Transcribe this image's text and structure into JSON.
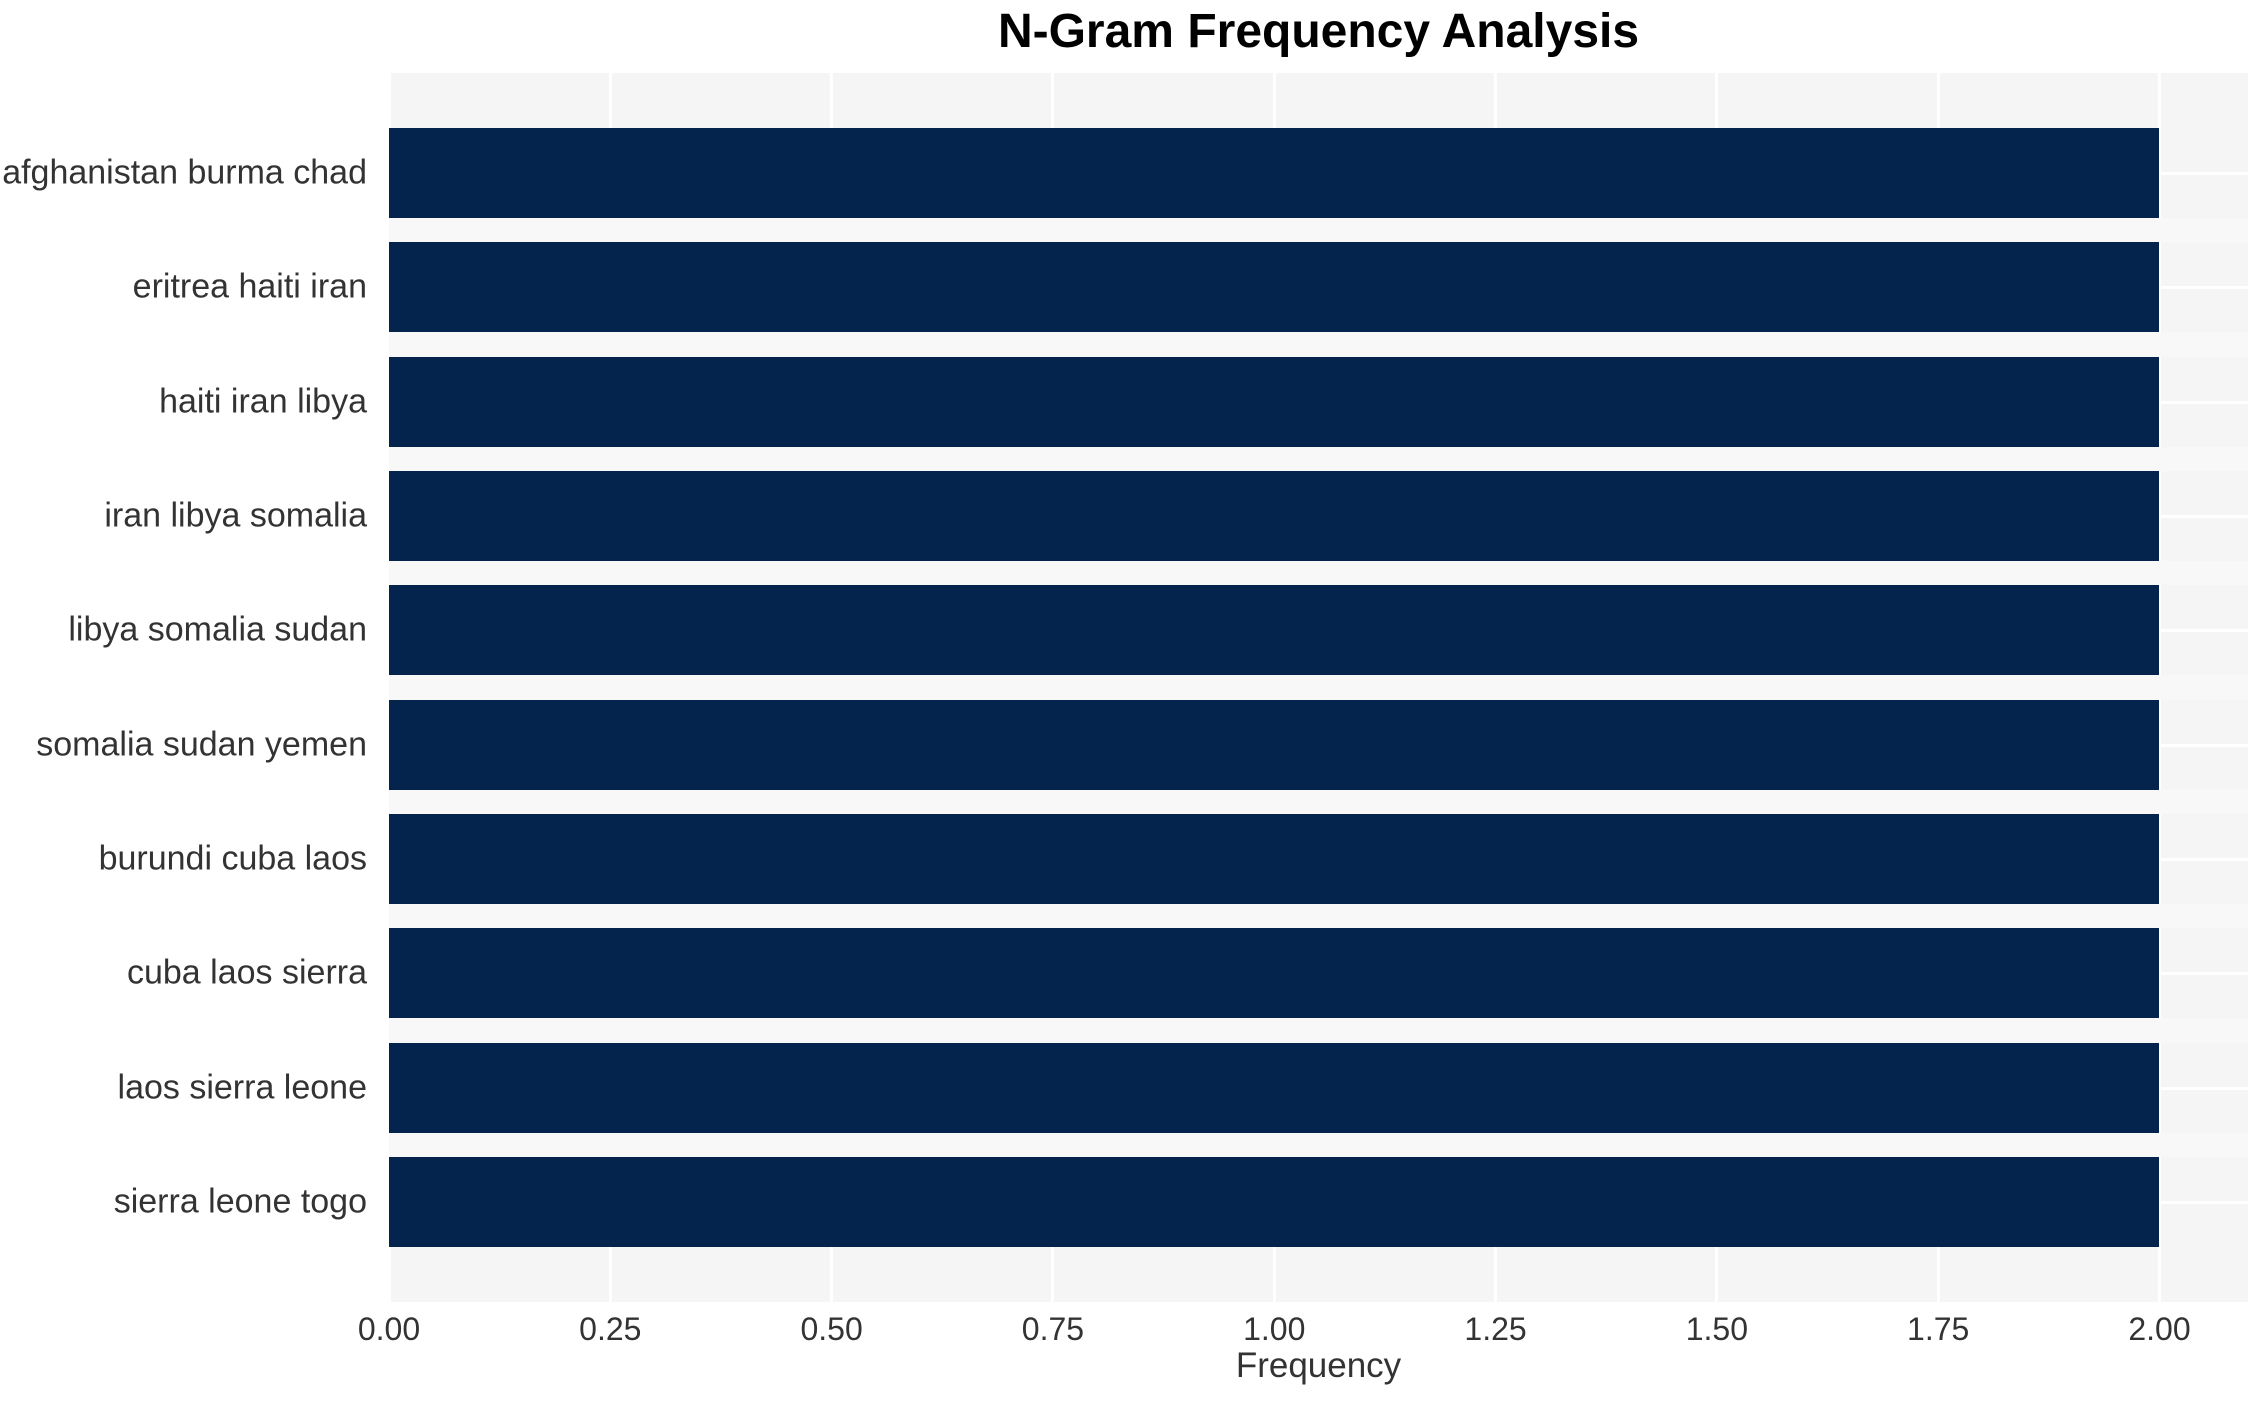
{
  "chart_data": {
    "type": "bar",
    "orientation": "horizontal",
    "title": "N-Gram Frequency Analysis",
    "xlabel": "Frequency",
    "ylabel": "",
    "categories": [
      "afghanistan burma chad",
      "eritrea haiti iran",
      "haiti iran libya",
      "iran libya somalia",
      "libya somalia sudan",
      "somalia sudan yemen",
      "burundi cuba laos",
      "cuba laos sierra",
      "laos sierra leone",
      "sierra leone togo"
    ],
    "values": [
      2,
      2,
      2,
      2,
      2,
      2,
      2,
      2,
      2,
      2
    ],
    "xlim": [
      0,
      2.1
    ],
    "xticks": [
      0,
      0.25,
      0.5,
      0.75,
      1,
      1.25,
      1.5,
      1.75,
      2
    ],
    "xtick_labels": [
      "0.00",
      "0.25",
      "0.50",
      "0.75",
      "1.00",
      "1.25",
      "1.50",
      "1.75",
      "2.00"
    ],
    "grid": true,
    "legend": false,
    "colors": {
      "bar": "#04234d",
      "plot_background": "#f5f5f6",
      "row_gap": "#f8f8f9",
      "gridline": "#ffffff",
      "tick_text": "#333333",
      "title_text": "#000000",
      "page_background": "#ffffff"
    }
  }
}
